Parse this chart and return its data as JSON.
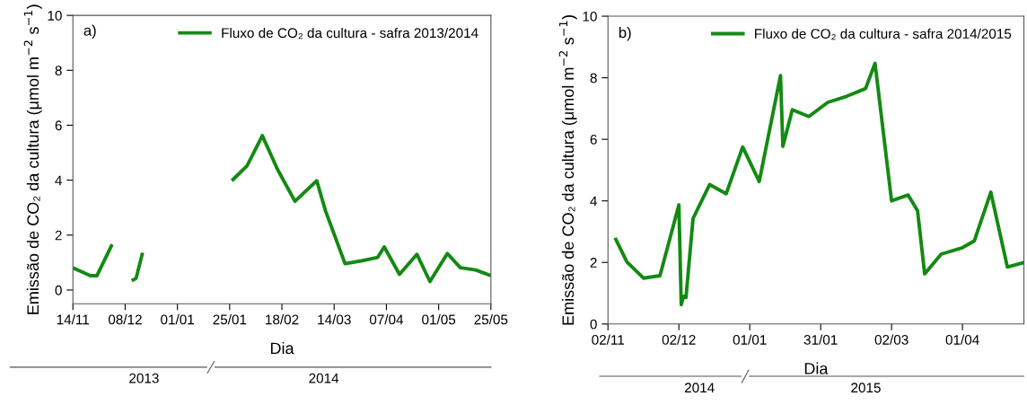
{
  "chart_data": [
    {
      "type": "line",
      "xlabel": "Dia",
      "ylabel": "Emissão de CO₂ da cultura (μmol m$^{−2}$ s$^{−1}$)",
      "annotations": [
        "a)",
        "2013",
        "2014"
      ],
      "xlim": [
        "2013-11-14",
        "2014-05-25"
      ],
      "xticks": [
        {
          "value": "2013-11-14",
          "label": "14/11"
        },
        {
          "value": "2013-12-08",
          "label": "08/12"
        },
        {
          "value": "2014-01-01",
          "label": "01/01"
        },
        {
          "value": "2014-01-25",
          "label": "25/01"
        },
        {
          "value": "2014-02-18",
          "label": "18/02"
        },
        {
          "value": "2014-03-14",
          "label": "14/03"
        },
        {
          "value": "2014-04-07",
          "label": "07/04"
        },
        {
          "value": "2014-05-01",
          "label": "01/05"
        },
        {
          "value": "2014-05-25",
          "label": "25/05"
        }
      ],
      "ylim": [
        -0.5,
        10
      ],
      "yticks": [
        0,
        2,
        4,
        6,
        8,
        10
      ],
      "grid": false,
      "legend": "top right",
      "line_style": "solid",
      "marker": "none",
      "series": [
        {
          "name": "Fluxo de CO₂ da cultura - safra 2013/2014",
          "color": "#138a13",
          "x": [
            "2013-11-14",
            "2013-11-22",
            "2013-11-25",
            "2013-12-02",
            "2013-12-06",
            "2013-12-11",
            "2013-12-13",
            "2013-12-16",
            "2014-01-01",
            "2014-01-26",
            "2014-02-02",
            "2014-02-09",
            "2014-02-16",
            "2014-02-24",
            "2014-03-06",
            "2014-03-10",
            "2014-03-19",
            "2014-03-27",
            "2014-04-03",
            "2014-04-06",
            "2014-04-13",
            "2014-04-21",
            "2014-04-27",
            "2014-05-05",
            "2014-05-11",
            "2014-05-18",
            "2014-05-25"
          ],
          "values": [
            0.81,
            0.52,
            0.52,
            1.66,
            null,
            0.34,
            0.42,
            1.36,
            null,
            3.98,
            4.52,
            5.62,
            4.39,
            3.23,
            3.98,
            2.89,
            0.96,
            1.07,
            1.19,
            1.57,
            0.57,
            1.3,
            0.31,
            1.33,
            0.81,
            0.73,
            0.52
          ]
        }
      ]
    },
    {
      "type": "line",
      "xlabel": "Dia",
      "ylabel": "Emissão de CO₂ da cultura (μmol m$^{−2}$ s$^{−1}$)",
      "annotations": [
        "b)",
        "2014",
        "2015"
      ],
      "xlim": [
        "2014-11-02",
        "2015-04-27"
      ],
      "xticks": [
        {
          "value": "2014-11-02",
          "label": "02/11"
        },
        {
          "value": "2014-12-02",
          "label": "02/12"
        },
        {
          "value": "2015-01-01",
          "label": "01/01"
        },
        {
          "value": "2015-01-31",
          "label": "31/01"
        },
        {
          "value": "2015-03-02",
          "label": "02/03"
        },
        {
          "value": "2015-04-01",
          "label": "01/04"
        }
      ],
      "ylim": [
        0,
        10
      ],
      "yticks": [
        0,
        2,
        4,
        6,
        8,
        10
      ],
      "grid": false,
      "legend": "top right",
      "line_style": "solid",
      "marker": "none",
      "series": [
        {
          "name": "Fluxo de CO₂ da cultura - safra 2014/2015",
          "color": "#138a13",
          "x": [
            "2014-11-05",
            "2014-11-10",
            "2014-11-17",
            "2014-11-24",
            "2014-12-02",
            "2014-12-03",
            "2014-12-04",
            "2014-12-05",
            "2014-12-08",
            "2014-12-15",
            "2014-12-22",
            "2014-12-29",
            "2015-01-05",
            "2015-01-14",
            "2015-01-15",
            "2015-01-19",
            "2015-01-26",
            "2015-02-03",
            "2015-02-10",
            "2015-02-19",
            "2015-02-23",
            "2015-03-02",
            "2015-03-09",
            "2015-03-13",
            "2015-03-16",
            "2015-03-23",
            "2015-04-01",
            "2015-04-06",
            "2015-04-13",
            "2015-04-20",
            "2015-04-27"
          ],
          "values": [
            2.8,
            2.02,
            1.49,
            1.57,
            3.87,
            0.63,
            0.9,
            0.86,
            3.43,
            4.53,
            4.23,
            5.75,
            4.63,
            8.07,
            5.77,
            6.96,
            6.74,
            7.2,
            7.37,
            7.65,
            8.47,
            4.0,
            4.19,
            3.68,
            1.63,
            2.27,
            2.48,
            2.7,
            4.28,
            1.85,
            2.0
          ]
        }
      ]
    }
  ]
}
